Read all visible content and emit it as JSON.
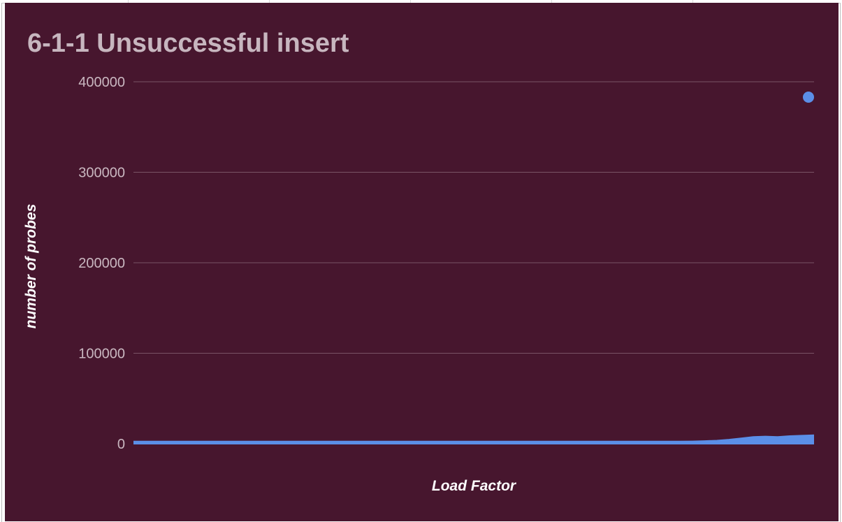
{
  "chart_data": {
    "type": "area",
    "title": "6-1-1 Unsuccessful insert",
    "xlabel": "Load Factor",
    "ylabel": "number of probes",
    "ylim": [
      0,
      400000
    ],
    "yticks": [
      0,
      100000,
      200000,
      300000,
      400000
    ],
    "ytick_labels": [
      "0",
      "100000",
      "200000",
      "300000",
      "400000"
    ],
    "x_tick_labels": [],
    "grid": true,
    "legend": "none",
    "series": [
      {
        "values": [
          2500,
          2500,
          2500,
          2500,
          2500,
          2500,
          2500,
          2500,
          2500,
          2500,
          2500,
          2500,
          2500,
          2500,
          2500,
          2500,
          2500,
          2500,
          2500,
          2500,
          2500,
          2500,
          2500,
          2500,
          2500,
          2500,
          2500,
          2500,
          2500,
          2500,
          2500,
          2500,
          2500,
          2500,
          2500,
          2500,
          2500,
          2500,
          2500,
          2500,
          2500,
          2500,
          2500,
          2500,
          2500,
          2500,
          2600,
          3000,
          3500,
          4500,
          6000,
          7500,
          8000,
          7500,
          8500,
          9000,
          9500,
          383000
        ]
      }
    ],
    "colors": {
      "background": "#47162e",
      "series": "#5b8fe8",
      "gridline": "#7a5466",
      "title": "#c7b6bf",
      "tick_label": "#c9b7c0",
      "axis_label": "#ffffff"
    }
  }
}
